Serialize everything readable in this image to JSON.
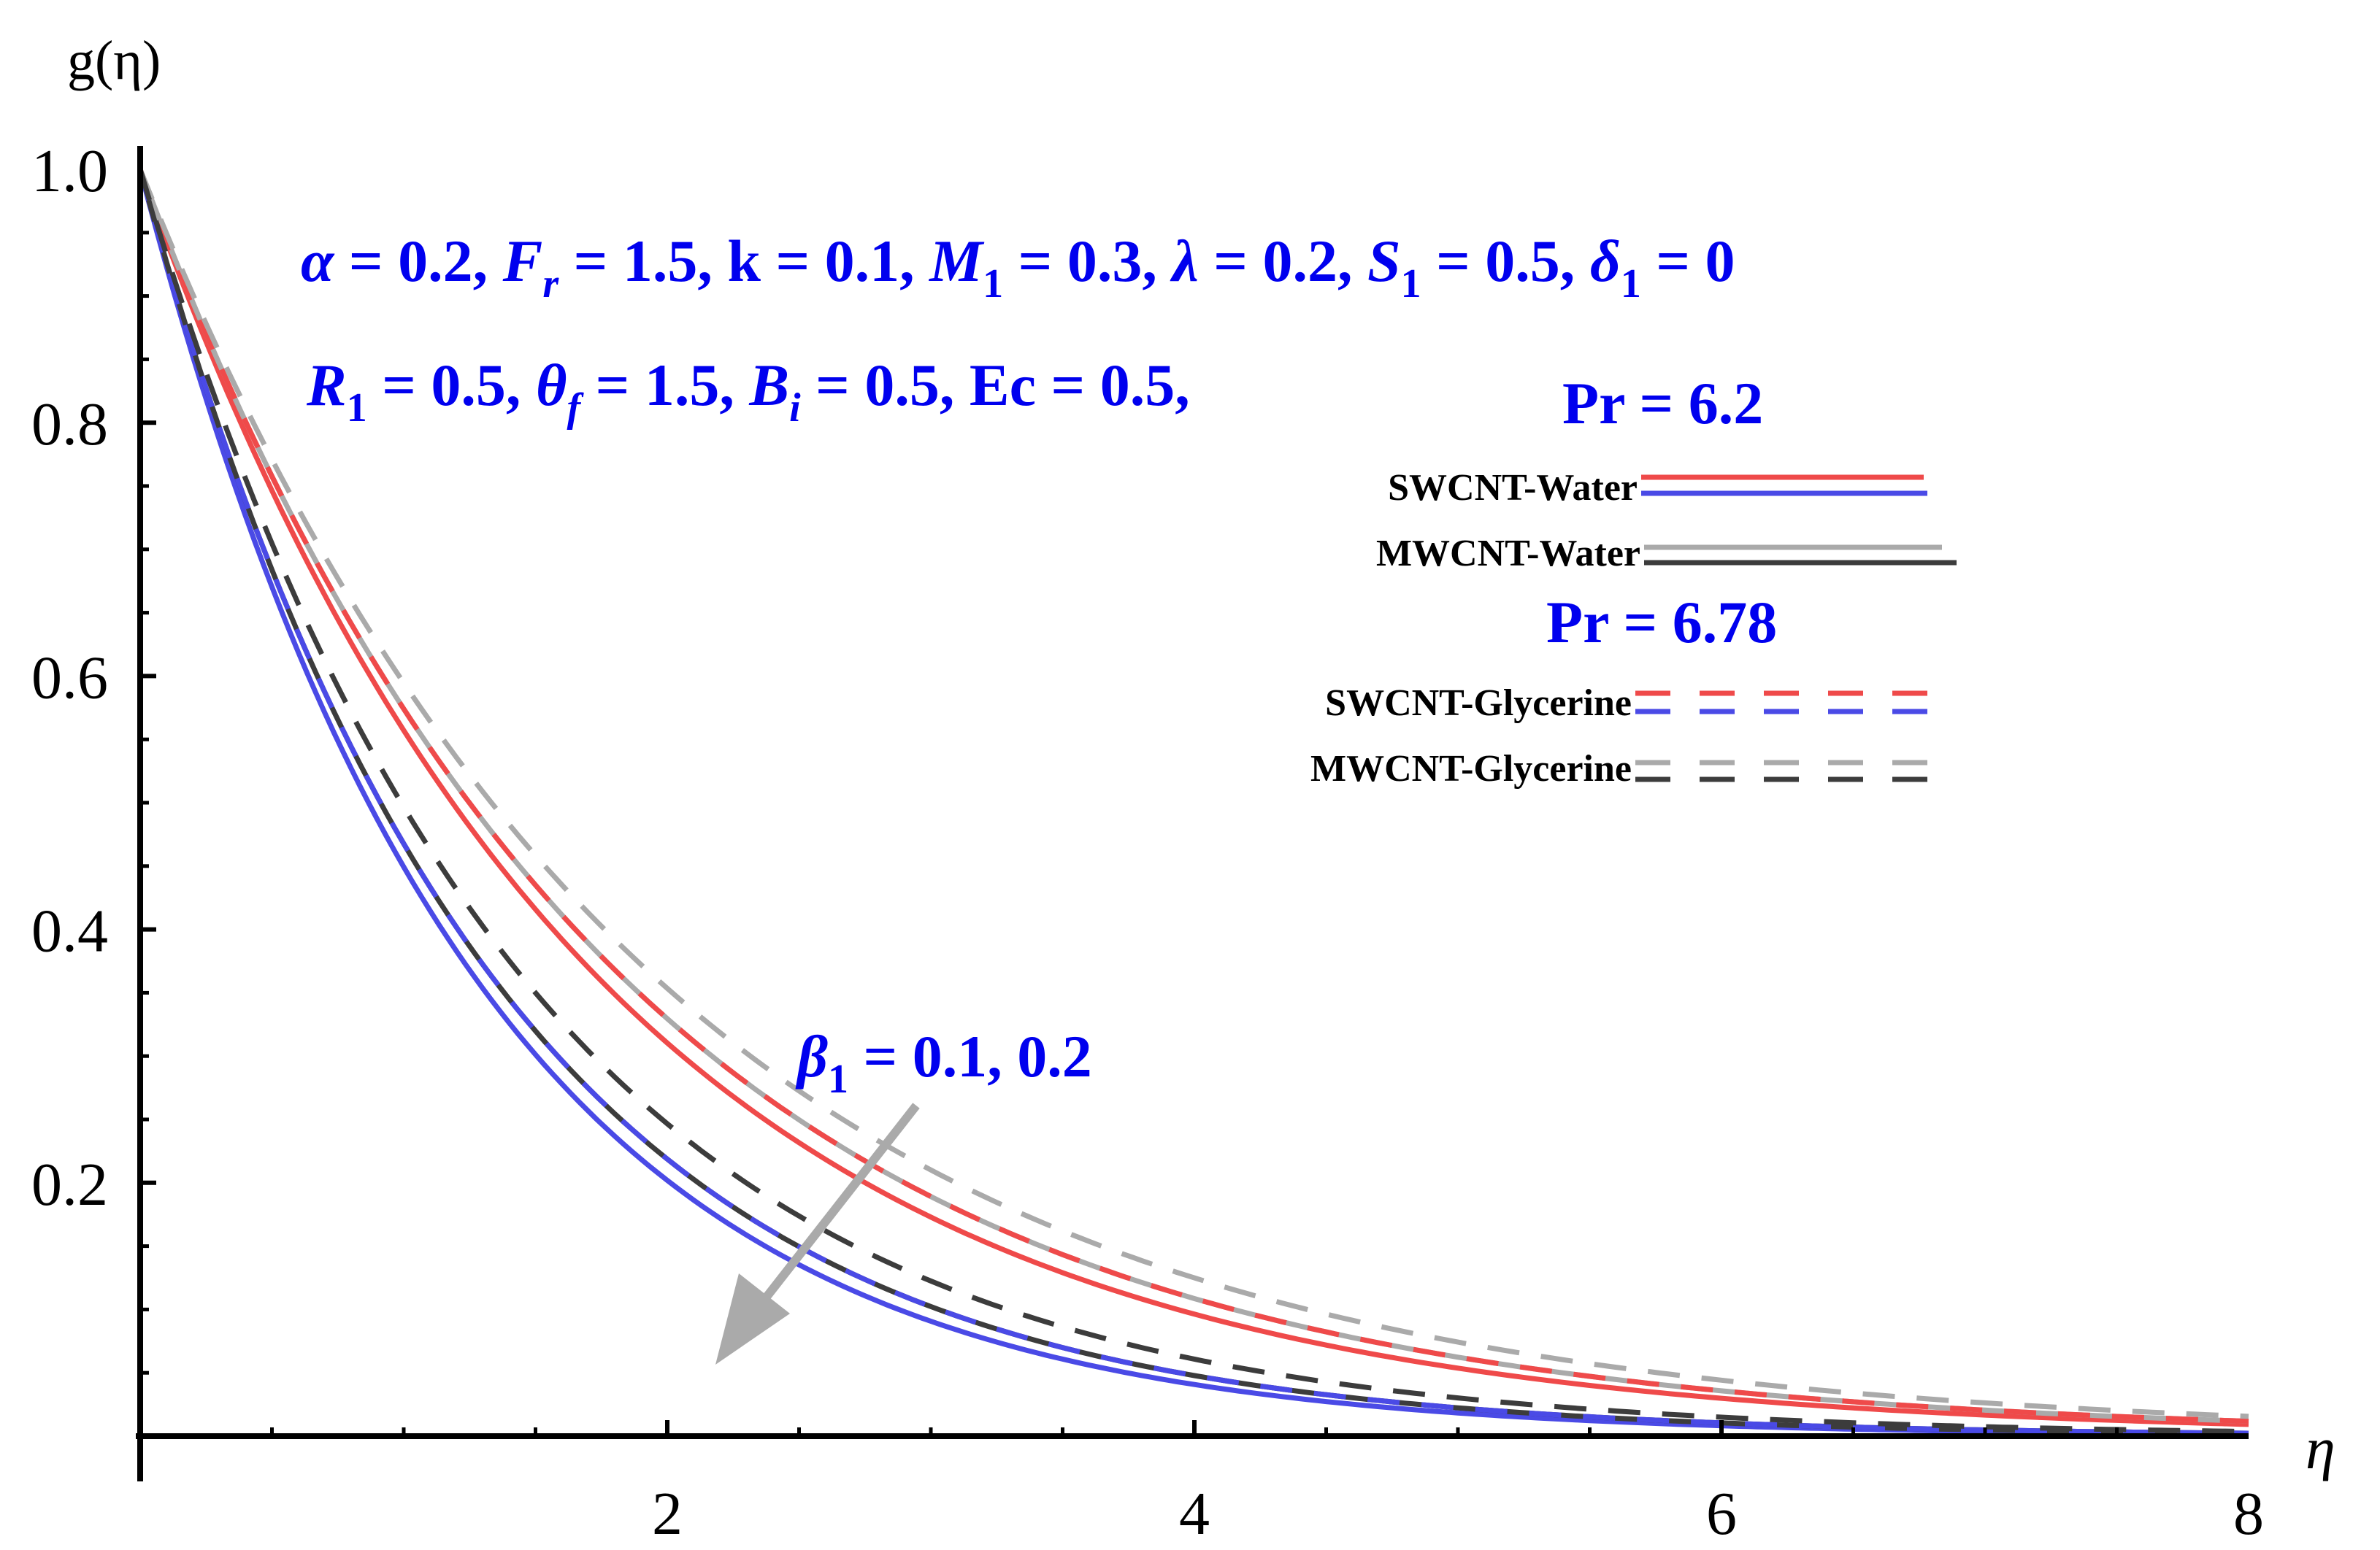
{
  "chart_data": {
    "type": "line",
    "title": "",
    "xlabel": "η",
    "ylabel": "g(η)",
    "xlim": [
      0,
      8
    ],
    "ylim": [
      0,
      1
    ],
    "x_ticks": [
      2,
      4,
      6,
      8
    ],
    "x_tick_labels": [
      "2",
      "4",
      "6",
      "8"
    ],
    "y_ticks": [
      0.2,
      0.4,
      0.6,
      0.8,
      1.0
    ],
    "y_tick_labels": [
      "0.2",
      "0.4",
      "0.6",
      "0.8",
      "1.0"
    ],
    "grid": false,
    "params_line1": {
      "segments": [
        {
          "t": "α",
          "s": "math"
        },
        {
          "t": " = 0.2, ",
          "s": "bold"
        },
        {
          "t": "F",
          "s": "math"
        },
        {
          "t": "r",
          "s": "msub"
        },
        {
          "t": " = 1.5, k = 0.1, ",
          "s": "bold"
        },
        {
          "t": "M",
          "s": "math"
        },
        {
          "t": "1",
          "s": "sub"
        },
        {
          "t": " =  0.3, ",
          "s": "bold"
        },
        {
          "t": "λ",
          "s": "math"
        },
        {
          "t": " = 0.2, ",
          "s": "bold"
        },
        {
          "t": "S",
          "s": "math"
        },
        {
          "t": "1",
          "s": "sub"
        },
        {
          "t": " = 0.5, ",
          "s": "bold"
        },
        {
          "t": "δ",
          "s": "math"
        },
        {
          "t": "1",
          "s": "sub"
        },
        {
          "t": " = 0",
          "s": "bold"
        }
      ]
    },
    "params_line2": {
      "segments": [
        {
          "t": "R",
          "s": "math"
        },
        {
          "t": "1",
          "s": "sub"
        },
        {
          "t": " = 0.5, ",
          "s": "bold"
        },
        {
          "t": "θ",
          "s": "math"
        },
        {
          "t": "f",
          "s": "msub"
        },
        {
          "t": " = 1.5, ",
          "s": "bold"
        },
        {
          "t": "B",
          "s": "math"
        },
        {
          "t": "i",
          "s": "msub"
        },
        {
          "t": " =  0.5, Ec = 0.5,",
          "s": "bold"
        }
      ]
    },
    "pr_water_label": "Pr = 6.2",
    "pr_glycerine_label": "Pr = 6.78",
    "beta_annotation": {
      "segments": [
        {
          "t": "β",
          "s": "math"
        },
        {
          "t": "1",
          "s": "sub"
        },
        {
          "t": " =  0.1, 0.2",
          "s": "bold"
        }
      ]
    },
    "legend": [
      {
        "label": "SWCNT-Water",
        "colors": [
          "#ef4a4a",
          "#4a4ae6"
        ],
        "dash": false
      },
      {
        "label": "MWCNT-Water",
        "colors": [
          "#aaaaaa",
          "#3c3c3c"
        ],
        "dash": false
      },
      {
        "label": "SWCNT-Glycerine",
        "colors": [
          "#ef4a4a",
          "#4a4ae6"
        ],
        "dash": true
      },
      {
        "label": "MWCNT-Glycerine",
        "colors": [
          "#aaaaaa",
          "#3c3c3c"
        ],
        "dash": true
      }
    ],
    "series": [
      {
        "name": "SWCNT-Water β1=0.1",
        "color": "#ef4a4a",
        "dash": false,
        "decay": 0.585
      },
      {
        "name": "SWCNT-Water β1=0.2",
        "color": "#4a4ae6",
        "dash": false,
        "decay": 0.8
      },
      {
        "name": "MWCNT-Water β1=0.1",
        "color": "#aaaaaa",
        "dash": false,
        "decay": 0.555
      },
      {
        "name": "MWCNT-Water β1=0.2",
        "color": "#3c3c3c",
        "dash": false,
        "decay": 0.76
      },
      {
        "name": "SWCNT-Glycerine β1=0.1",
        "color": "#ef4a4a",
        "dash": true,
        "decay": 0.555
      },
      {
        "name": "SWCNT-Glycerine β1=0.2",
        "color": "#4a4ae6",
        "dash": true,
        "decay": 0.76
      },
      {
        "name": "MWCNT-Glycerine β1=0.1",
        "color": "#aaaaaa",
        "dash": true,
        "decay": 0.52
      },
      {
        "name": "MWCNT-Glycerine β1=0.2",
        "color": "#3c3c3c",
        "dash": true,
        "decay": 0.7
      }
    ]
  }
}
